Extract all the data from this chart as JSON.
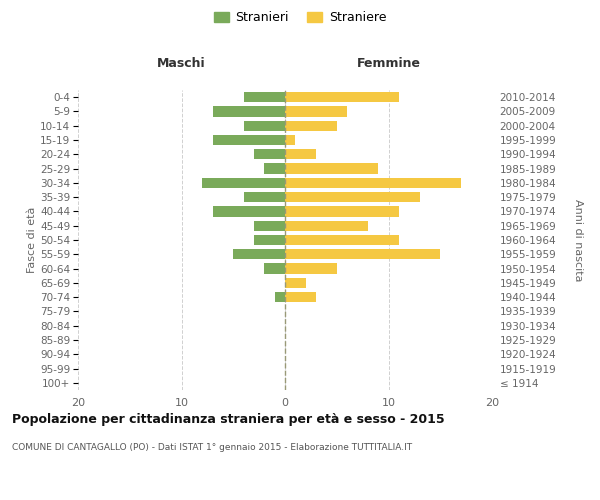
{
  "age_groups": [
    "100+",
    "95-99",
    "90-94",
    "85-89",
    "80-84",
    "75-79",
    "70-74",
    "65-69",
    "60-64",
    "55-59",
    "50-54",
    "45-49",
    "40-44",
    "35-39",
    "30-34",
    "25-29",
    "20-24",
    "15-19",
    "10-14",
    "5-9",
    "0-4"
  ],
  "birth_years": [
    "≤ 1914",
    "1915-1919",
    "1920-1924",
    "1925-1929",
    "1930-1934",
    "1935-1939",
    "1940-1944",
    "1945-1949",
    "1950-1954",
    "1955-1959",
    "1960-1964",
    "1965-1969",
    "1970-1974",
    "1975-1979",
    "1980-1984",
    "1985-1989",
    "1990-1994",
    "1995-1999",
    "2000-2004",
    "2005-2009",
    "2010-2014"
  ],
  "maschi": [
    0,
    0,
    0,
    0,
    0,
    0,
    1,
    0,
    2,
    5,
    3,
    3,
    7,
    4,
    8,
    2,
    3,
    7,
    4,
    7,
    4
  ],
  "femmine": [
    0,
    0,
    0,
    0,
    0,
    0,
    3,
    2,
    5,
    15,
    11,
    8,
    11,
    13,
    17,
    9,
    3,
    1,
    5,
    6,
    11
  ],
  "color_maschi": "#7aaa5a",
  "color_femmine": "#f5c842",
  "title": "Popolazione per cittadinanza straniera per età e sesso - 2015",
  "subtitle": "COMUNE DI CANTAGALLO (PO) - Dati ISTAT 1° gennaio 2015 - Elaborazione TUTTITALIA.IT",
  "xlabel_left": "Maschi",
  "xlabel_right": "Femmine",
  "ylabel_left": "Fasce di età",
  "ylabel_right": "Anni di nascita",
  "legend_maschi": "Stranieri",
  "legend_femmine": "Straniere",
  "xlim": 20,
  "background_color": "#ffffff",
  "grid_color": "#d0d0d0"
}
